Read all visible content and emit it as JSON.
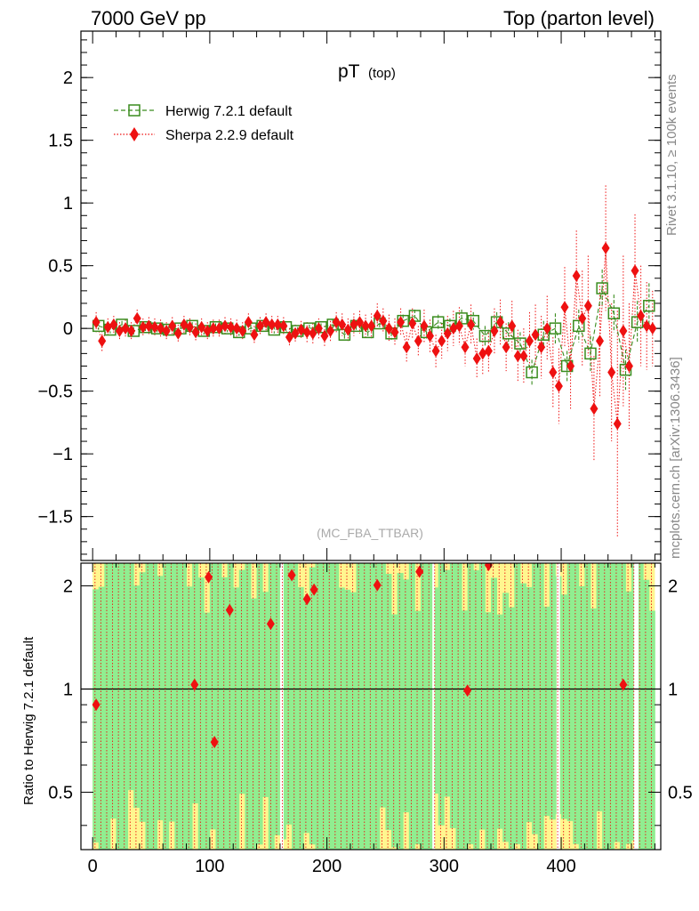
{
  "header": {
    "left": "7000 GeV pp",
    "right": "Top (parton level)"
  },
  "side": {
    "rivet": "Rivet 3.1.10, ≥ 100k events",
    "mcplots": "mcplots.cern.ch [arXiv:1306.3436]"
  },
  "chart_data": [
    {
      "type": "scatter",
      "title": "pT",
      "title_sub": "(top)",
      "watermark": "(MC_FBA_TTBAR)",
      "xlim": [
        -10,
        485
      ],
      "ylim": [
        -1.85,
        2.37
      ],
      "yticks": [
        -1.5,
        -1,
        -0.5,
        0,
        0.5,
        1,
        1.5,
        2
      ],
      "ytick_labels": [
        "−1.5",
        "−1",
        "−0.5",
        "0",
        "0.5",
        "1",
        "1.5",
        "2"
      ],
      "legend": "top-left",
      "series": [
        {
          "name": "Herwig 7.2.1 default",
          "color": "#3a8c1e",
          "marker": "open-square",
          "x": [
            5,
            15,
            25,
            35,
            45,
            55,
            65,
            75,
            85,
            95,
            105,
            115,
            125,
            135,
            145,
            155,
            165,
            175,
            185,
            195,
            205,
            215,
            225,
            235,
            245,
            255,
            265,
            275,
            285,
            295,
            305,
            315,
            325,
            335,
            345,
            355,
            365,
            375,
            385,
            395,
            405,
            415,
            425,
            435,
            445,
            455,
            465,
            475
          ],
          "y": [
            0.02,
            -0.01,
            0.03,
            -0.02,
            0.01,
            0.0,
            -0.01,
            0.0,
            0.02,
            -0.02,
            0.01,
            0.0,
            -0.03,
            0.0,
            0.02,
            -0.01,
            0.01,
            -0.02,
            0.0,
            0.01,
            0.03,
            -0.05,
            0.02,
            -0.03,
            0.04,
            -0.04,
            0.06,
            0.1,
            -0.03,
            0.05,
            0.02,
            0.08,
            0.06,
            -0.06,
            0.05,
            -0.04,
            -0.12,
            -0.35,
            -0.05,
            0.0,
            -0.3,
            0.02,
            -0.2,
            0.32,
            0.12,
            -0.33,
            0.05,
            0.18
          ],
          "err": [
            0.03,
            0.03,
            0.03,
            0.03,
            0.03,
            0.03,
            0.03,
            0.03,
            0.03,
            0.03,
            0.03,
            0.03,
            0.03,
            0.03,
            0.03,
            0.03,
            0.03,
            0.03,
            0.03,
            0.03,
            0.04,
            0.04,
            0.04,
            0.04,
            0.04,
            0.05,
            0.05,
            0.05,
            0.05,
            0.06,
            0.06,
            0.07,
            0.07,
            0.08,
            0.08,
            0.09,
            0.09,
            0.1,
            0.11,
            0.12,
            0.12,
            0.13,
            0.14,
            0.15,
            0.15,
            0.16,
            0.17,
            0.18
          ]
        },
        {
          "name": "Sherpa 2.2.9 default",
          "color": "#ee1111",
          "marker": "filled-diamond",
          "x": [
            3,
            8,
            13,
            18,
            23,
            28,
            33,
            38,
            43,
            48,
            53,
            58,
            63,
            68,
            73,
            78,
            83,
            88,
            93,
            98,
            103,
            108,
            113,
            118,
            123,
            128,
            133,
            138,
            143,
            148,
            153,
            158,
            163,
            168,
            173,
            178,
            183,
            188,
            193,
            198,
            203,
            208,
            213,
            218,
            223,
            228,
            233,
            238,
            243,
            248,
            253,
            258,
            263,
            268,
            273,
            278,
            283,
            288,
            293,
            298,
            303,
            308,
            313,
            318,
            323,
            328,
            333,
            338,
            343,
            348,
            353,
            358,
            363,
            368,
            373,
            378,
            383,
            388,
            393,
            398,
            403,
            408,
            413,
            418,
            423,
            428,
            433,
            438,
            443,
            448,
            453,
            458,
            463,
            468,
            473,
            478
          ],
          "y": [
            0.05,
            -0.1,
            0.01,
            0.03,
            -0.02,
            0.0,
            -0.02,
            0.08,
            0.01,
            0.02,
            0.01,
            0.0,
            -0.02,
            0.02,
            -0.04,
            0.03,
            0.01,
            -0.03,
            0.01,
            -0.02,
            0.0,
            0.0,
            0.02,
            0.01,
            0.0,
            -0.02,
            0.05,
            -0.05,
            0.02,
            0.05,
            0.03,
            0.03,
            0.02,
            -0.07,
            -0.04,
            -0.01,
            -0.03,
            -0.04,
            0.0,
            -0.06,
            -0.02,
            0.05,
            0.03,
            -0.01,
            0.03,
            0.05,
            0.02,
            0.02,
            0.1,
            0.06,
            0.0,
            -0.03,
            0.05,
            -0.15,
            0.04,
            -0.1,
            0.02,
            -0.06,
            -0.18,
            -0.1,
            -0.04,
            0.0,
            0.02,
            -0.15,
            0.03,
            -0.24,
            -0.2,
            -0.18,
            -0.02,
            0.05,
            -0.15,
            0.02,
            -0.22,
            -0.22,
            -0.1,
            -0.05,
            -0.15,
            0.0,
            -0.35,
            -0.46,
            0.17,
            -0.3,
            0.42,
            0.08,
            0.18,
            -0.64,
            -0.1,
            0.64,
            -0.35,
            -0.76,
            -0.02,
            -0.3,
            0.46,
            0.1,
            0.02,
            0.0
          ],
          "err": [
            0.08,
            0.08,
            0.07,
            0.07,
            0.07,
            0.07,
            0.07,
            0.07,
            0.07,
            0.07,
            0.07,
            0.07,
            0.07,
            0.07,
            0.07,
            0.07,
            0.07,
            0.07,
            0.07,
            0.07,
            0.07,
            0.07,
            0.07,
            0.07,
            0.07,
            0.07,
            0.07,
            0.07,
            0.07,
            0.07,
            0.07,
            0.07,
            0.07,
            0.07,
            0.07,
            0.07,
            0.08,
            0.08,
            0.08,
            0.08,
            0.08,
            0.08,
            0.09,
            0.09,
            0.09,
            0.09,
            0.09,
            0.1,
            0.1,
            0.1,
            0.11,
            0.11,
            0.11,
            0.12,
            0.12,
            0.12,
            0.13,
            0.13,
            0.13,
            0.14,
            0.14,
            0.14,
            0.15,
            0.15,
            0.16,
            0.16,
            0.17,
            0.17,
            0.18,
            0.18,
            0.19,
            0.2,
            0.21,
            0.22,
            0.23,
            0.24,
            0.25,
            0.26,
            0.28,
            0.3,
            0.32,
            0.34,
            0.36,
            0.38,
            0.4,
            0.42,
            0.44,
            0.5,
            0.55,
            0.9,
            0.6,
            0.5,
            0.45,
            0.4,
            0.35,
            0.3
          ]
        }
      ]
    },
    {
      "type": "scatter",
      "ylabel": "Ratio to Herwig 7.2.1 default",
      "xlim": [
        -10,
        485
      ],
      "ylim": [
        0.34,
        2.33
      ],
      "yticks": [
        0.5,
        1,
        2
      ],
      "ytick_labels": [
        "0.5",
        "1",
        "2"
      ],
      "xticks": [
        0,
        100,
        200,
        300,
        400
      ],
      "xtick_labels": [
        "0",
        "100",
        "200",
        "300",
        "400"
      ],
      "band_colors": {
        "inner": "#90ee90",
        "outer": "#fff68f"
      },
      "series": [
        {
          "name": "Sherpa 2.2.9 default",
          "color": "#ee1111",
          "x": [
            3,
            87,
            99,
            104,
            117,
            152,
            170,
            183,
            189,
            243,
            279,
            320,
            338,
            453
          ],
          "y": [
            0.9,
            1.03,
            2.12,
            0.7,
            1.7,
            1.55,
            2.15,
            1.83,
            1.95,
            2.01,
            2.2,
            0.99,
            2.3,
            1.03
          ]
        }
      ]
    }
  ]
}
